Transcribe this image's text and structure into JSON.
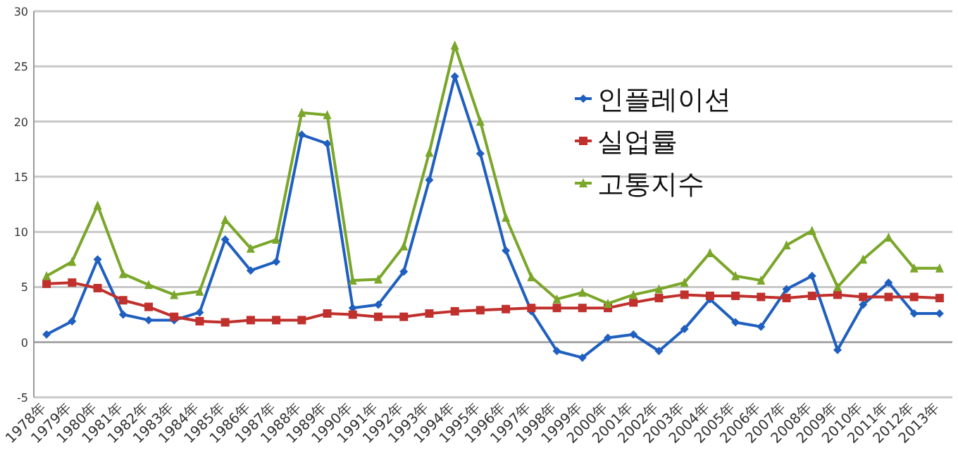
{
  "chart_data": {
    "type": "line",
    "categories": [
      "1978年",
      "1979年",
      "1980年",
      "1981年",
      "1982年",
      "1983年",
      "1984年",
      "1985年",
      "1986年",
      "1987年",
      "1988年",
      "1989年",
      "1990年",
      "1991年",
      "1992年",
      "1993年",
      "1994年",
      "1995年",
      "1996年",
      "1997年",
      "1998年",
      "1999年",
      "2000年",
      "2001年",
      "2002年",
      "2003年",
      "2004年",
      "2005年",
      "2006年",
      "2007年",
      "2008年",
      "2009年",
      "2010年",
      "2011年",
      "2012年",
      "2013年"
    ],
    "series": [
      {
        "name": "인플레이션",
        "color": "#1f5fbf",
        "marker": "diamond",
        "values": [
          0.7,
          1.9,
          7.5,
          2.5,
          2.0,
          2.0,
          2.7,
          9.3,
          6.5,
          7.3,
          18.8,
          18.0,
          3.1,
          3.4,
          6.4,
          14.7,
          24.1,
          17.1,
          8.3,
          2.8,
          -0.8,
          -1.4,
          0.4,
          0.7,
          -0.8,
          1.2,
          3.9,
          1.8,
          1.4,
          4.8,
          6.0,
          -0.7,
          3.4,
          5.4,
          2.6,
          2.6
        ]
      },
      {
        "name": "실업률",
        "color": "#c0302c",
        "marker": "square",
        "values": [
          5.3,
          5.4,
          4.9,
          3.8,
          3.2,
          2.3,
          1.9,
          1.8,
          2.0,
          2.0,
          2.0,
          2.6,
          2.5,
          2.3,
          2.3,
          2.6,
          2.8,
          2.9,
          3.0,
          3.1,
          3.1,
          3.1,
          3.1,
          3.6,
          4.0,
          4.3,
          4.2,
          4.2,
          4.1,
          4.0,
          4.2,
          4.3,
          4.1,
          4.1,
          4.1,
          4.0
        ]
      },
      {
        "name": "고통지수",
        "color": "#7aa62a",
        "marker": "triangle",
        "values": [
          6.0,
          7.3,
          12.4,
          6.2,
          5.2,
          4.3,
          4.6,
          11.1,
          8.5,
          9.3,
          20.8,
          20.6,
          5.6,
          5.7,
          8.7,
          17.2,
          26.9,
          20.0,
          11.3,
          5.9,
          3.9,
          4.5,
          3.5,
          4.3,
          4.8,
          5.4,
          8.1,
          6.0,
          5.6,
          8.8,
          10.1,
          5.0,
          7.5,
          9.5,
          6.7,
          6.7
        ]
      }
    ],
    "ylim": [
      -5,
      30
    ],
    "yticks": [
      -5,
      0,
      5,
      10,
      15,
      20,
      25,
      30
    ],
    "grid": "y",
    "legend": "top right",
    "line_style": "solid"
  }
}
